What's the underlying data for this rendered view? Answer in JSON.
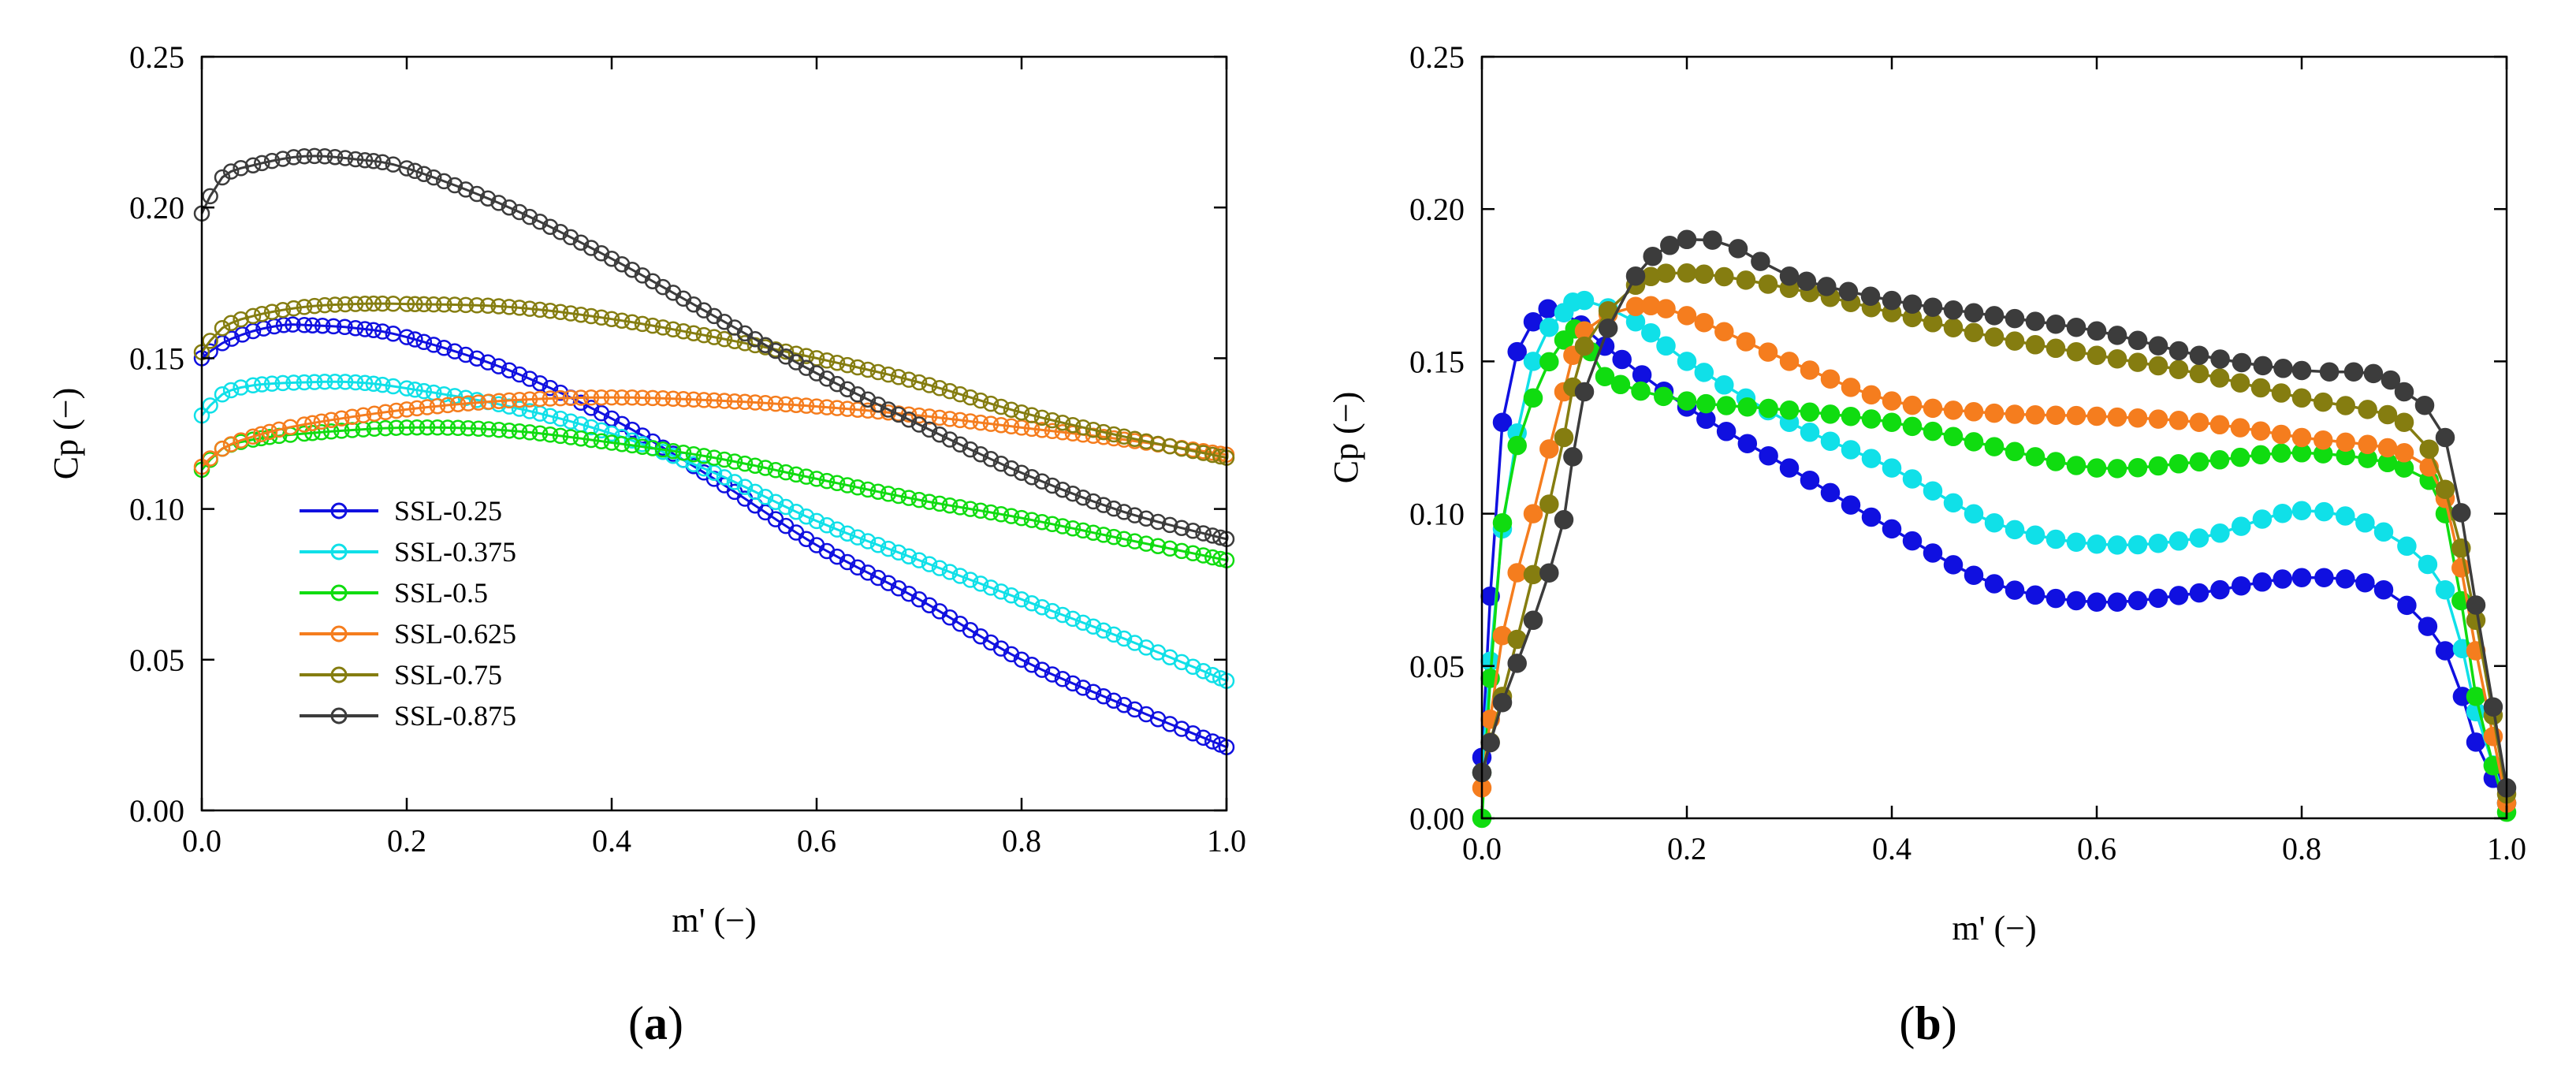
{
  "chart_data": [
    {
      "type": "line",
      "panel_label": "(a)",
      "panel_letter": "a",
      "xlabel": "m' (−)",
      "ylabel": "Cp (−)",
      "xlim": [
        0.0,
        1.0
      ],
      "ylim": [
        0.0,
        0.25
      ],
      "xticks": [
        "0.0",
        "0.2",
        "0.4",
        "0.6",
        "0.8",
        "1.0"
      ],
      "yticks": [
        "0.00",
        "0.05",
        "0.10",
        "0.15",
        "0.20",
        "0.25"
      ],
      "marker": "open-circle",
      "legend_position": "lower-left",
      "series": [
        {
          "name": "SSL-0.25",
          "color": "#1010e0",
          "x": [
            0.0,
            0.02,
            0.05,
            0.08,
            0.1,
            0.15,
            0.2,
            0.3,
            0.4,
            0.5,
            0.6,
            0.7,
            0.8,
            0.9,
            1.0
          ],
          "y": [
            0.15,
            0.155,
            0.159,
            0.161,
            0.161,
            0.16,
            0.157,
            0.146,
            0.13,
            0.11,
            0.088,
            0.07,
            0.05,
            0.035,
            0.021
          ]
        },
        {
          "name": "SSL-0.375",
          "color": "#10e0e8",
          "x": [
            0.0,
            0.02,
            0.05,
            0.1,
            0.15,
            0.2,
            0.3,
            0.4,
            0.5,
            0.6,
            0.7,
            0.8,
            0.9,
            1.0
          ],
          "y": [
            0.131,
            0.138,
            0.141,
            0.142,
            0.142,
            0.14,
            0.134,
            0.125,
            0.112,
            0.096,
            0.083,
            0.07,
            0.057,
            0.043
          ]
        },
        {
          "name": "SSL-0.5",
          "color": "#10dc10",
          "x": [
            0.0,
            0.02,
            0.05,
            0.1,
            0.2,
            0.3,
            0.4,
            0.5,
            0.6,
            0.7,
            0.8,
            0.9,
            1.0
          ],
          "y": [
            0.113,
            0.12,
            0.123,
            0.125,
            0.127,
            0.126,
            0.122,
            0.117,
            0.11,
            0.103,
            0.097,
            0.09,
            0.083
          ]
        },
        {
          "name": "SSL-0.625",
          "color": "#f57d1e",
          "x": [
            0.0,
            0.02,
            0.05,
            0.1,
            0.2,
            0.3,
            0.4,
            0.5,
            0.6,
            0.7,
            0.8,
            0.9,
            1.0
          ],
          "y": [
            0.114,
            0.12,
            0.124,
            0.128,
            0.133,
            0.136,
            0.137,
            0.136,
            0.134,
            0.131,
            0.127,
            0.123,
            0.118
          ]
        },
        {
          "name": "SSL-0.75",
          "color": "#857d10",
          "x": [
            0.0,
            0.02,
            0.05,
            0.1,
            0.15,
            0.2,
            0.3,
            0.4,
            0.5,
            0.6,
            0.7,
            0.8,
            0.9,
            1.0
          ],
          "y": [
            0.152,
            0.16,
            0.164,
            0.167,
            0.168,
            0.168,
            0.167,
            0.163,
            0.157,
            0.15,
            0.142,
            0.132,
            0.124,
            0.117
          ]
        },
        {
          "name": "SSL-0.875",
          "color": "#3c3c3c",
          "x": [
            0.0,
            0.02,
            0.05,
            0.1,
            0.15,
            0.2,
            0.3,
            0.4,
            0.5,
            0.6,
            0.7,
            0.8,
            0.9,
            1.0
          ],
          "y": [
            0.198,
            0.21,
            0.214,
            0.217,
            0.216,
            0.213,
            0.2,
            0.183,
            0.164,
            0.145,
            0.128,
            0.112,
            0.099,
            0.09
          ]
        }
      ]
    },
    {
      "type": "line",
      "panel_label": "(b)",
      "panel_letter": "b",
      "xlabel": "m' (−)",
      "ylabel": "Cp (−)",
      "xlim": [
        0.0,
        1.0
      ],
      "ylim": [
        0.0,
        0.25
      ],
      "xticks": [
        "0.0",
        "0.2",
        "0.4",
        "0.6",
        "0.8",
        "1.0"
      ],
      "yticks": [
        "0.00",
        "0.05",
        "0.10",
        "0.15",
        "0.20",
        "0.25"
      ],
      "marker": "filled-circle",
      "series": [
        {
          "name": "SSL-0.25",
          "color": "#1010e0",
          "x": [
            0.0,
            0.02,
            0.05,
            0.08,
            0.12,
            0.2,
            0.3,
            0.4,
            0.5,
            0.6,
            0.7,
            0.8,
            0.88,
            0.94,
            0.97,
            1.0
          ],
          "y": [
            0.02,
            0.13,
            0.163,
            0.166,
            0.155,
            0.135,
            0.115,
            0.095,
            0.077,
            0.071,
            0.074,
            0.079,
            0.075,
            0.055,
            0.025,
            0.005
          ]
        },
        {
          "name": "SSL-0.375",
          "color": "#10e0e8",
          "x": [
            0.0,
            0.02,
            0.05,
            0.08,
            0.1,
            0.15,
            0.2,
            0.3,
            0.4,
            0.5,
            0.6,
            0.7,
            0.8,
            0.88,
            0.94,
            0.97,
            1.0
          ],
          "y": [
            0.015,
            0.095,
            0.15,
            0.166,
            0.17,
            0.163,
            0.15,
            0.13,
            0.115,
            0.097,
            0.09,
            0.092,
            0.101,
            0.094,
            0.075,
            0.035,
            0.005
          ]
        },
        {
          "name": "SSL-0.5",
          "color": "#10dc10",
          "x": [
            0.0,
            0.02,
            0.05,
            0.08,
            0.1,
            0.12,
            0.2,
            0.3,
            0.4,
            0.5,
            0.6,
            0.7,
            0.8,
            0.9,
            0.94,
            0.97,
            1.0
          ],
          "y": [
            0.0,
            0.097,
            0.138,
            0.157,
            0.16,
            0.145,
            0.137,
            0.134,
            0.13,
            0.122,
            0.115,
            0.117,
            0.12,
            0.115,
            0.1,
            0.04,
            0.002
          ]
        },
        {
          "name": "SSL-0.625",
          "color": "#f57d1e",
          "x": [
            0.0,
            0.02,
            0.05,
            0.08,
            0.1,
            0.15,
            0.2,
            0.3,
            0.4,
            0.5,
            0.6,
            0.7,
            0.8,
            0.9,
            0.94,
            0.97,
            1.0
          ],
          "y": [
            0.01,
            0.06,
            0.1,
            0.14,
            0.16,
            0.168,
            0.165,
            0.15,
            0.137,
            0.133,
            0.132,
            0.13,
            0.125,
            0.12,
            0.105,
            0.055,
            0.005
          ]
        },
        {
          "name": "SSL-0.75",
          "color": "#857d10",
          "x": [
            0.0,
            0.02,
            0.05,
            0.08,
            0.1,
            0.15,
            0.2,
            0.3,
            0.4,
            0.5,
            0.6,
            0.7,
            0.8,
            0.9,
            0.94,
            0.97,
            1.0
          ],
          "y": [
            0.015,
            0.04,
            0.08,
            0.125,
            0.155,
            0.175,
            0.179,
            0.174,
            0.166,
            0.158,
            0.152,
            0.146,
            0.138,
            0.13,
            0.108,
            0.065,
            0.008
          ]
        },
        {
          "name": "SSL-0.875",
          "color": "#3c3c3c",
          "x": [
            0.0,
            0.02,
            0.05,
            0.08,
            0.1,
            0.15,
            0.2,
            0.25,
            0.3,
            0.4,
            0.5,
            0.6,
            0.7,
            0.8,
            0.87,
            0.9,
            0.94,
            0.97,
            1.0
          ],
          "y": [
            0.015,
            0.038,
            0.065,
            0.098,
            0.14,
            0.178,
            0.19,
            0.187,
            0.178,
            0.17,
            0.165,
            0.16,
            0.152,
            0.147,
            0.146,
            0.14,
            0.125,
            0.07,
            0.01
          ]
        }
      ]
    }
  ]
}
